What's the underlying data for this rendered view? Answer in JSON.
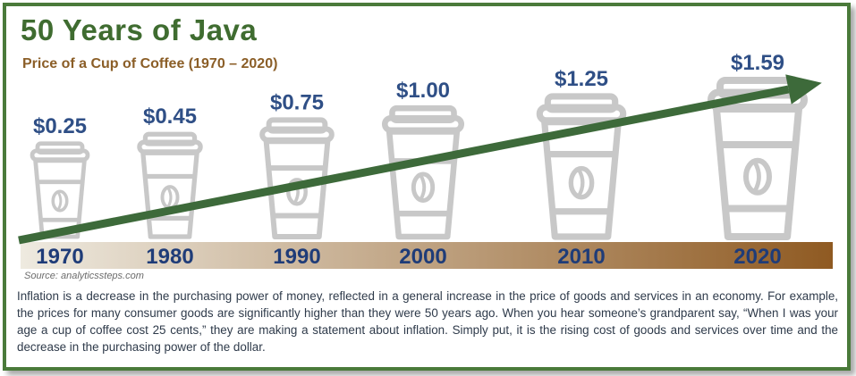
{
  "title": "50 Years of Java",
  "subtitle": "Price of a Cup of Coffee (1970 – 2020)",
  "source": "Source: analyticssteps.com",
  "description": "Inflation is a decrease in the purchasing power of money, reflected in a general increase in the price of goods and services in an economy. For example, the prices for many consumer goods are significantly higher than they were 50 years ago. When you hear someone’s grandparent say, “When I was your age a cup of coffee cost 25 cents,” they are making a statement about inflation. Simply put, it is the rising cost of goods and services over time and the decrease in the purchasing power of the dollar.",
  "colors": {
    "frame": "#4a7a3a",
    "title": "#3f6c30",
    "subtitle": "#8b5e27",
    "price_label": "#2f4f86",
    "year_label": "#1f3c78",
    "arrow": "#3d6a3a",
    "cup": "#c8c8c8",
    "timeline_start": "#eeeae0",
    "timeline_end": "#8f5a22"
  },
  "icons": [
    "coffee-cup-icon",
    "coffee-bean-icon",
    "trend-arrow-icon"
  ],
  "chart_data": {
    "type": "bar",
    "categories": [
      "1970",
      "1980",
      "1990",
      "2000",
      "2010",
      "2020"
    ],
    "values": [
      0.25,
      0.45,
      0.75,
      1.0,
      1.25,
      1.59
    ],
    "value_labels": [
      "$0.25",
      "$0.45",
      "$0.75",
      "$1.00",
      "$1.25",
      "$1.59"
    ],
    "trend": "increasing"
  }
}
